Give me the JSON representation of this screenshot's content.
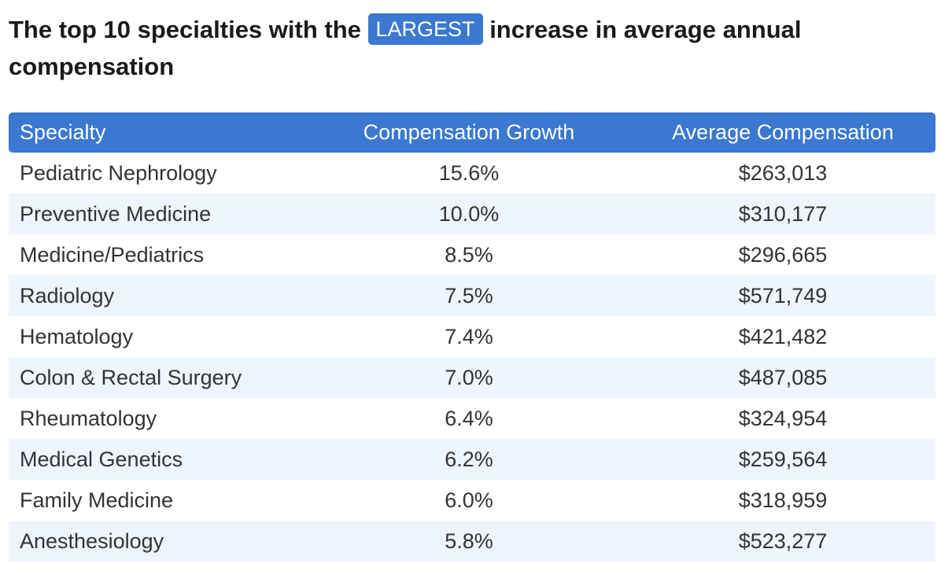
{
  "chart_data": {
    "type": "table",
    "title": {
      "prefix": "The top 10 specialties with the",
      "highlight": "LARGEST",
      "suffix": "increase in average annual compensation"
    },
    "columns": [
      "Specialty",
      "Compensation Growth",
      "Average Compensation"
    ],
    "rows": [
      [
        "Pediatric Nephrology",
        "15.6%",
        "$263,013"
      ],
      [
        "Preventive Medicine",
        "10.0%",
        "$310,177"
      ],
      [
        "Medicine/Pediatrics",
        "8.5%",
        "$296,665"
      ],
      [
        "Radiology",
        "7.5%",
        "$571,749"
      ],
      [
        "Hematology",
        "7.4%",
        "$421,482"
      ],
      [
        "Colon & Rectal Surgery",
        "7.0%",
        "$487,085"
      ],
      [
        "Rheumatology",
        "6.4%",
        "$324,954"
      ],
      [
        "Medical Genetics",
        "6.2%",
        "$259,564"
      ],
      [
        "Family Medicine",
        "6.0%",
        "$318,959"
      ],
      [
        "Anesthesiology",
        "5.8%",
        "$523,277"
      ]
    ],
    "growth_values": [
      15.6,
      10.0,
      8.5,
      7.5,
      7.4,
      7.0,
      6.4,
      6.2,
      6.0,
      5.8
    ],
    "compensation_values": [
      263013,
      310177,
      296665,
      571749,
      421482,
      487085,
      324954,
      259564,
      318959,
      523277
    ]
  },
  "colors": {
    "accent": "#3a78d1",
    "row_alt": "#eef5fe",
    "title_text": "#1a1a1a",
    "cell_text": "#333333"
  }
}
